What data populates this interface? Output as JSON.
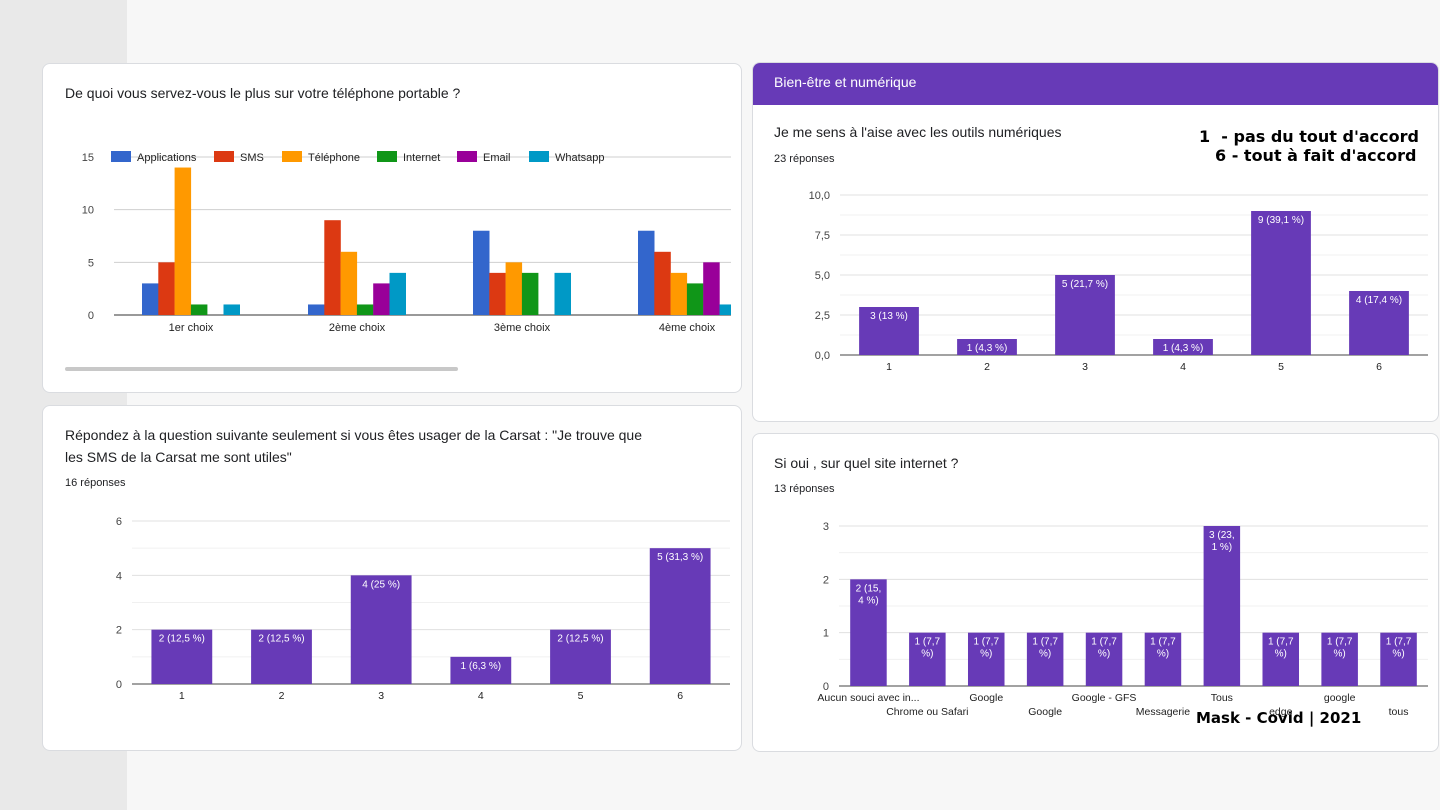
{
  "card1": {
    "title": "De quoi vous servez-vous le plus sur votre téléphone portable ?"
  },
  "card2": {
    "title_line1": "Répondez à la question suivante seulement si vous êtes usager de la Carsat : \"Je trouve que",
    "title_line2": "les SMS de la Carsat me sont utiles\"",
    "responses": "16 réponses"
  },
  "card3": {
    "section": "Bien-être et numérique",
    "title": "Je me sens à l'aise avec les outils numériques",
    "responses": "23 réponses"
  },
  "card4": {
    "title": "Si oui , sur quel site internet ?",
    "responses": "13 réponses"
  },
  "notes": {
    "scale1": "1  - pas du tout d'accord",
    "scale6": "6 - tout à fait d'accord",
    "footer": "Mask - Covid | 2021"
  },
  "colors": {
    "purple": "#673ab7",
    "blue": "#3366cc",
    "red": "#dc3912",
    "orange": "#ff9900",
    "green": "#109618",
    "magenta": "#990099",
    "cyan": "#0099c6"
  },
  "chart_data": [
    {
      "id": "phone-usage",
      "type": "bar",
      "categories": [
        "1er choix",
        "2ème choix",
        "3ème choix",
        "4ème choix"
      ],
      "series": [
        {
          "name": "Applications",
          "color": "#3366cc",
          "values": [
            3,
            1,
            8,
            8
          ]
        },
        {
          "name": "SMS",
          "color": "#dc3912",
          "values": [
            5,
            9,
            4,
            6
          ]
        },
        {
          "name": "Téléphone",
          "color": "#ff9900",
          "values": [
            14,
            6,
            5,
            4
          ]
        },
        {
          "name": "Internet",
          "color": "#109618",
          "values": [
            1,
            1,
            4,
            3
          ]
        },
        {
          "name": "Email",
          "color": "#990099",
          "values": [
            0,
            3,
            0,
            5
          ]
        },
        {
          "name": "Whatsapp",
          "color": "#0099c6",
          "values": [
            1,
            4,
            4,
            1
          ]
        }
      ],
      "yticks": [
        "0",
        "5",
        "10",
        "15"
      ],
      "ylim": [
        0,
        15
      ],
      "legend": "top"
    },
    {
      "id": "carsat-sms",
      "type": "bar",
      "categories": [
        "1",
        "2",
        "3",
        "4",
        "5",
        "6"
      ],
      "values": [
        2,
        2,
        4,
        1,
        2,
        5
      ],
      "labels": [
        "2 (12,5 %)",
        "2 (12,5 %)",
        "4 (25 %)",
        "1 (6,3 %)",
        "2 (12,5 %)",
        "5 (31,3 %)"
      ],
      "yticks": [
        "0",
        "2",
        "4",
        "6"
      ],
      "ylim": [
        0,
        6
      ]
    },
    {
      "id": "numerique-aise",
      "type": "bar",
      "categories": [
        "1",
        "2",
        "3",
        "4",
        "5",
        "6"
      ],
      "values": [
        3,
        1,
        5,
        1,
        9,
        4
      ],
      "labels": [
        "3 (13 %)",
        "1 (4,3 %)",
        "5 (21,7 %)",
        "1 (4,3 %)",
        "9 (39,1 %)",
        "4 (17,4 %)"
      ],
      "yticks": [
        "0,0",
        "2,5",
        "5,0",
        "7,5",
        "10,0"
      ],
      "ylim": [
        0,
        10
      ]
    },
    {
      "id": "site-internet",
      "type": "bar",
      "categories": [
        "Aucun souci avec in...",
        "Chrome ou Safari",
        "Google",
        "Google",
        "Google - GFS",
        "Messagerie",
        "Tous",
        "edge",
        "google",
        "tous"
      ],
      "values": [
        2,
        1,
        1,
        1,
        1,
        1,
        3,
        1,
        1,
        1
      ],
      "labels": [
        "2 (15,4 %)",
        "1 (7,7 %)",
        "1 (7,7 %)",
        "1 (7,7 %)",
        "1 (7,7 %)",
        "1 (7,7 %)",
        "3 (23,1 %)",
        "1 (7,7 %)",
        "1 (7,7 %)",
        "1 (7,7 %)"
      ],
      "yticks": [
        "0",
        "1",
        "2",
        "3"
      ],
      "ylim": [
        0,
        3
      ]
    }
  ]
}
